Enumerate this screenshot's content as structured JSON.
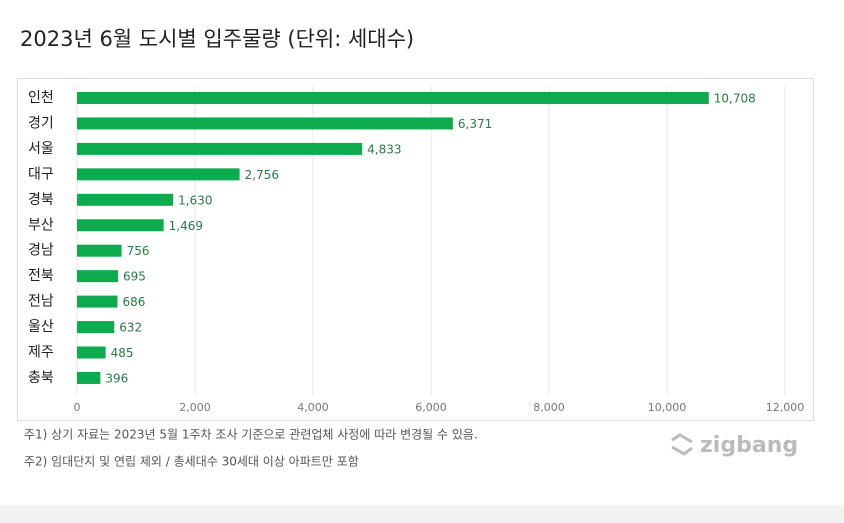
{
  "chart_data": {
    "type": "bar",
    "orientation": "horizontal",
    "title": "2023년 6월 도시별 입주물량 (단위: 세대수)",
    "categories": [
      "인천",
      "경기",
      "서울",
      "대구",
      "경북",
      "부산",
      "경남",
      "전북",
      "전남",
      "울산",
      "제주",
      "충북"
    ],
    "values": [
      10708,
      6371,
      4833,
      2756,
      1630,
      1469,
      756,
      695,
      686,
      632,
      485,
      396
    ],
    "value_labels": [
      "10,708",
      "6,371",
      "4,833",
      "2,756",
      "1,630",
      "1,469",
      "756",
      "695",
      "686",
      "632",
      "485",
      "396"
    ],
    "color": "#0eab4e",
    "xlim": [
      0,
      12000
    ],
    "xticks": [
      0,
      {
        "value": 2000,
        "label": "2,000"
      },
      {
        "value": 4000,
        "label": "4,000"
      },
      {
        "value": 6000,
        "label": "6,000"
      },
      {
        "value": 8000,
        "label": "8,000"
      },
      {
        "value": 10000,
        "label": "10,000"
      },
      {
        "value": 12000,
        "label": "12,000"
      }
    ],
    "grid": true
  },
  "footnotes": [
    "주1) 상기 자료는 2023년 5월 1주차 조사 기준으로 관련업체 사정에 따라 변경될 수 있음.",
    "주2) 임대단지 및 연립 제외 / 총세대수 30세대 이상 아파트만 포함"
  ],
  "logo": "zigbang"
}
